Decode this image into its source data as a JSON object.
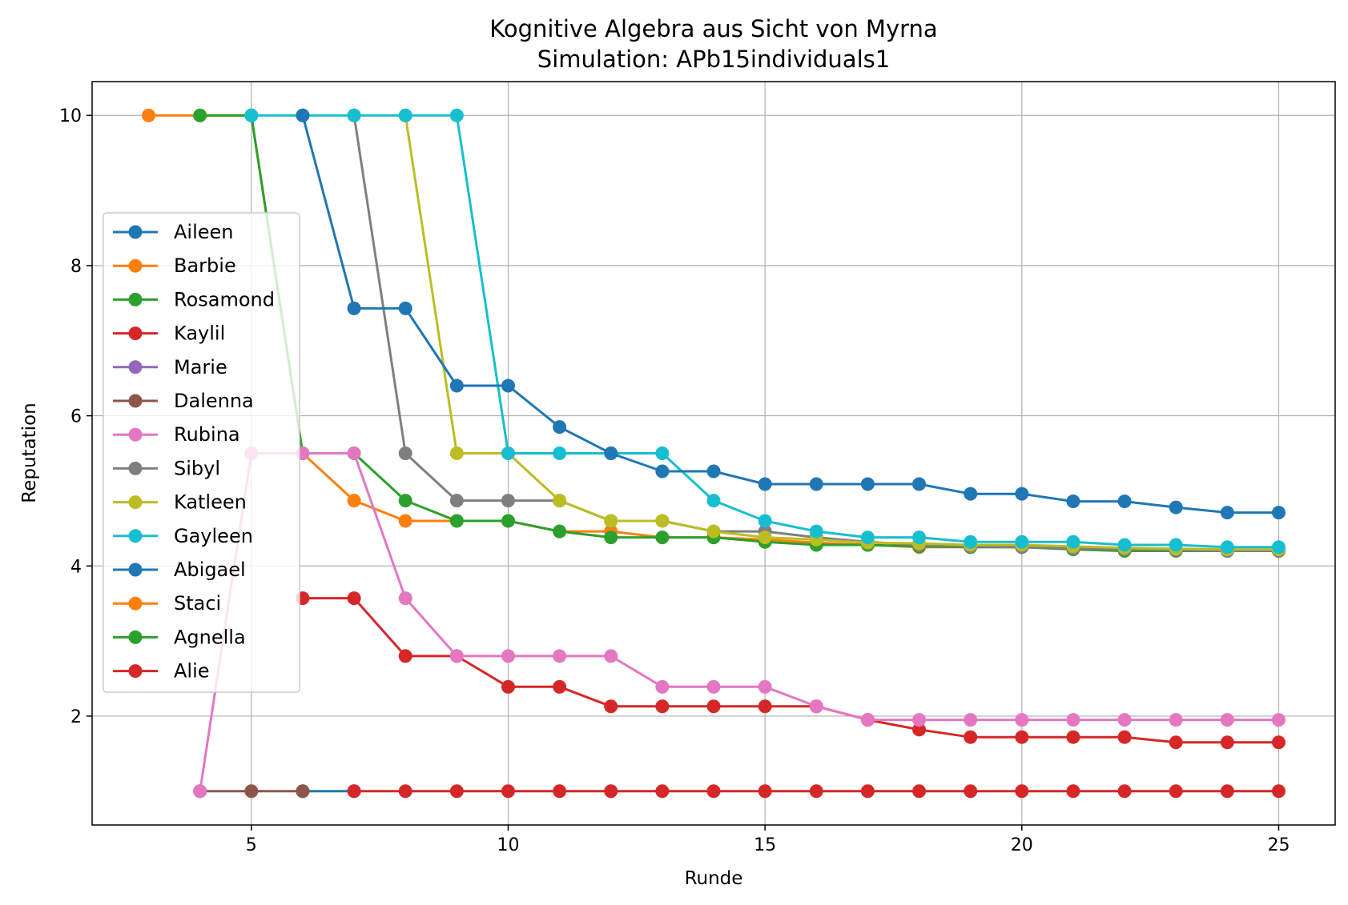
{
  "chart_data": {
    "type": "line",
    "title": "Kognitive Algebra aus Sicht von Myrna",
    "subtitle": "Simulation: APb15individuals1",
    "xlabel": "Runde",
    "ylabel": "Reputation",
    "xlim": [
      1.9,
      26.1
    ],
    "ylim": [
      0.55,
      10.45
    ],
    "xticks": [
      5,
      10,
      15,
      20,
      25
    ],
    "yticks": [
      2,
      4,
      6,
      8,
      10
    ],
    "grid": true,
    "legend_position": "center-left",
    "series": [
      {
        "name": "Aileen",
        "color": "#1f77b4",
        "x": [
          6,
          7
        ],
        "y": [
          1,
          1
        ]
      },
      {
        "name": "Barbie",
        "color": "#ff7f0e",
        "x": [
          3,
          4,
          5,
          6,
          7,
          8,
          9,
          10,
          11,
          12,
          13,
          14,
          15,
          16,
          17,
          18,
          19,
          20,
          21,
          22,
          23,
          24,
          25
        ],
        "y": [
          10,
          10,
          10,
          5.5,
          4.87,
          4.6,
          4.6,
          4.6,
          4.46,
          4.46,
          4.38,
          4.38,
          4.35,
          4.31,
          4.28,
          4.25,
          4.25,
          4.25,
          4.23,
          4.21,
          4.21,
          4.2,
          4.2
        ]
      },
      {
        "name": "Rosamond",
        "color": "#2ca02c",
        "x": [
          4,
          5,
          6,
          7,
          8,
          9,
          10,
          11,
          12,
          13,
          14,
          15,
          16,
          17,
          18,
          19,
          20,
          21,
          22,
          23,
          24,
          25
        ],
        "y": [
          10,
          10,
          5.5,
          5.5,
          4.87,
          4.6,
          4.6,
          4.46,
          4.38,
          4.38,
          4.38,
          4.32,
          4.28,
          4.28,
          4.26,
          4.25,
          4.25,
          4.22,
          4.2,
          4.2,
          4.2,
          4.2
        ]
      },
      {
        "name": "Kaylil",
        "color": "#d62728",
        "x": [
          6,
          7,
          8,
          9,
          10,
          11,
          12,
          13,
          14,
          15,
          16,
          17,
          18,
          19,
          20,
          21,
          22,
          23,
          24,
          25
        ],
        "y": [
          3.57,
          3.57,
          2.8,
          2.8,
          2.39,
          2.39,
          2.13,
          2.13,
          2.13,
          2.13,
          2.13,
          1.95,
          1.82,
          1.72,
          1.72,
          1.72,
          1.72,
          1.65,
          1.65,
          1.65
        ]
      },
      {
        "name": "Marie",
        "color": "#9467bd",
        "x": [],
        "y": []
      },
      {
        "name": "Dalenna",
        "color": "#8c564b",
        "x": [
          4,
          5,
          6
        ],
        "y": [
          1,
          1,
          1
        ]
      },
      {
        "name": "Rubina",
        "color": "#e377c2",
        "x": [
          4,
          5,
          6,
          7,
          8,
          9,
          10,
          11,
          12,
          13,
          14,
          15,
          16,
          17,
          18,
          19,
          20,
          21,
          22,
          23,
          24,
          25
        ],
        "y": [
          1,
          5.5,
          5.5,
          5.5,
          3.57,
          2.8,
          2.8,
          2.8,
          2.8,
          2.39,
          2.39,
          2.39,
          2.13,
          1.95,
          1.95,
          1.95,
          1.95,
          1.95,
          1.95,
          1.95,
          1.95,
          1.95
        ]
      },
      {
        "name": "Sibyl",
        "color": "#7f7f7f",
        "x": [
          7,
          8,
          9,
          10,
          11,
          12,
          13,
          14,
          15,
          16,
          17,
          18,
          19,
          20,
          21,
          22,
          23,
          24,
          25
        ],
        "y": [
          10,
          5.5,
          4.87,
          4.87,
          4.87,
          4.6,
          4.6,
          4.46,
          4.46,
          4.38,
          4.32,
          4.28,
          4.26,
          4.25,
          4.23,
          4.22,
          4.21,
          4.2,
          4.2
        ]
      },
      {
        "name": "Katleen",
        "color": "#bcbd22",
        "x": [
          8,
          9,
          10,
          11,
          12,
          13,
          14,
          15,
          16,
          17,
          18,
          19,
          20,
          21,
          22,
          23,
          24,
          25
        ],
        "y": [
          10,
          5.5,
          5.5,
          4.87,
          4.6,
          4.6,
          4.46,
          4.38,
          4.35,
          4.31,
          4.3,
          4.28,
          4.28,
          4.26,
          4.24,
          4.23,
          4.22,
          4.22
        ]
      },
      {
        "name": "Gayleen",
        "color": "#17becf",
        "x": [
          5,
          6,
          7,
          8,
          9,
          10,
          11,
          12,
          13,
          14,
          15,
          16,
          17,
          18,
          19,
          20,
          21,
          22,
          23,
          24,
          25
        ],
        "y": [
          10,
          10,
          10,
          10,
          10,
          5.5,
          5.5,
          5.5,
          5.5,
          4.87,
          4.6,
          4.46,
          4.38,
          4.38,
          4.32,
          4.32,
          4.32,
          4.28,
          4.28,
          4.25,
          4.25
        ]
      },
      {
        "name": "Abigael",
        "color": "#1f77b4",
        "x": [
          6,
          7,
          8,
          9,
          10,
          11,
          12,
          13,
          14,
          15,
          16,
          17,
          18,
          19,
          20,
          21,
          22,
          23,
          24,
          25
        ],
        "y": [
          10,
          7.43,
          7.43,
          6.4,
          6.4,
          5.85,
          5.5,
          5.26,
          5.26,
          5.09,
          5.09,
          5.09,
          5.09,
          4.96,
          4.96,
          4.86,
          4.86,
          4.78,
          4.71,
          4.71
        ]
      },
      {
        "name": "Staci",
        "color": "#ff7f0e",
        "x": [],
        "y": []
      },
      {
        "name": "Agnella",
        "color": "#2ca02c",
        "x": [],
        "y": []
      },
      {
        "name": "Alie",
        "color": "#d62728",
        "x": [
          7,
          8,
          9,
          10,
          11,
          12,
          13,
          14,
          15,
          16,
          17,
          18,
          19,
          20,
          21,
          22,
          23,
          24,
          25
        ],
        "y": [
          1,
          1,
          1,
          1,
          1,
          1,
          1,
          1,
          1,
          1,
          1,
          1,
          1,
          1,
          1,
          1,
          1,
          1,
          1
        ]
      }
    ]
  }
}
